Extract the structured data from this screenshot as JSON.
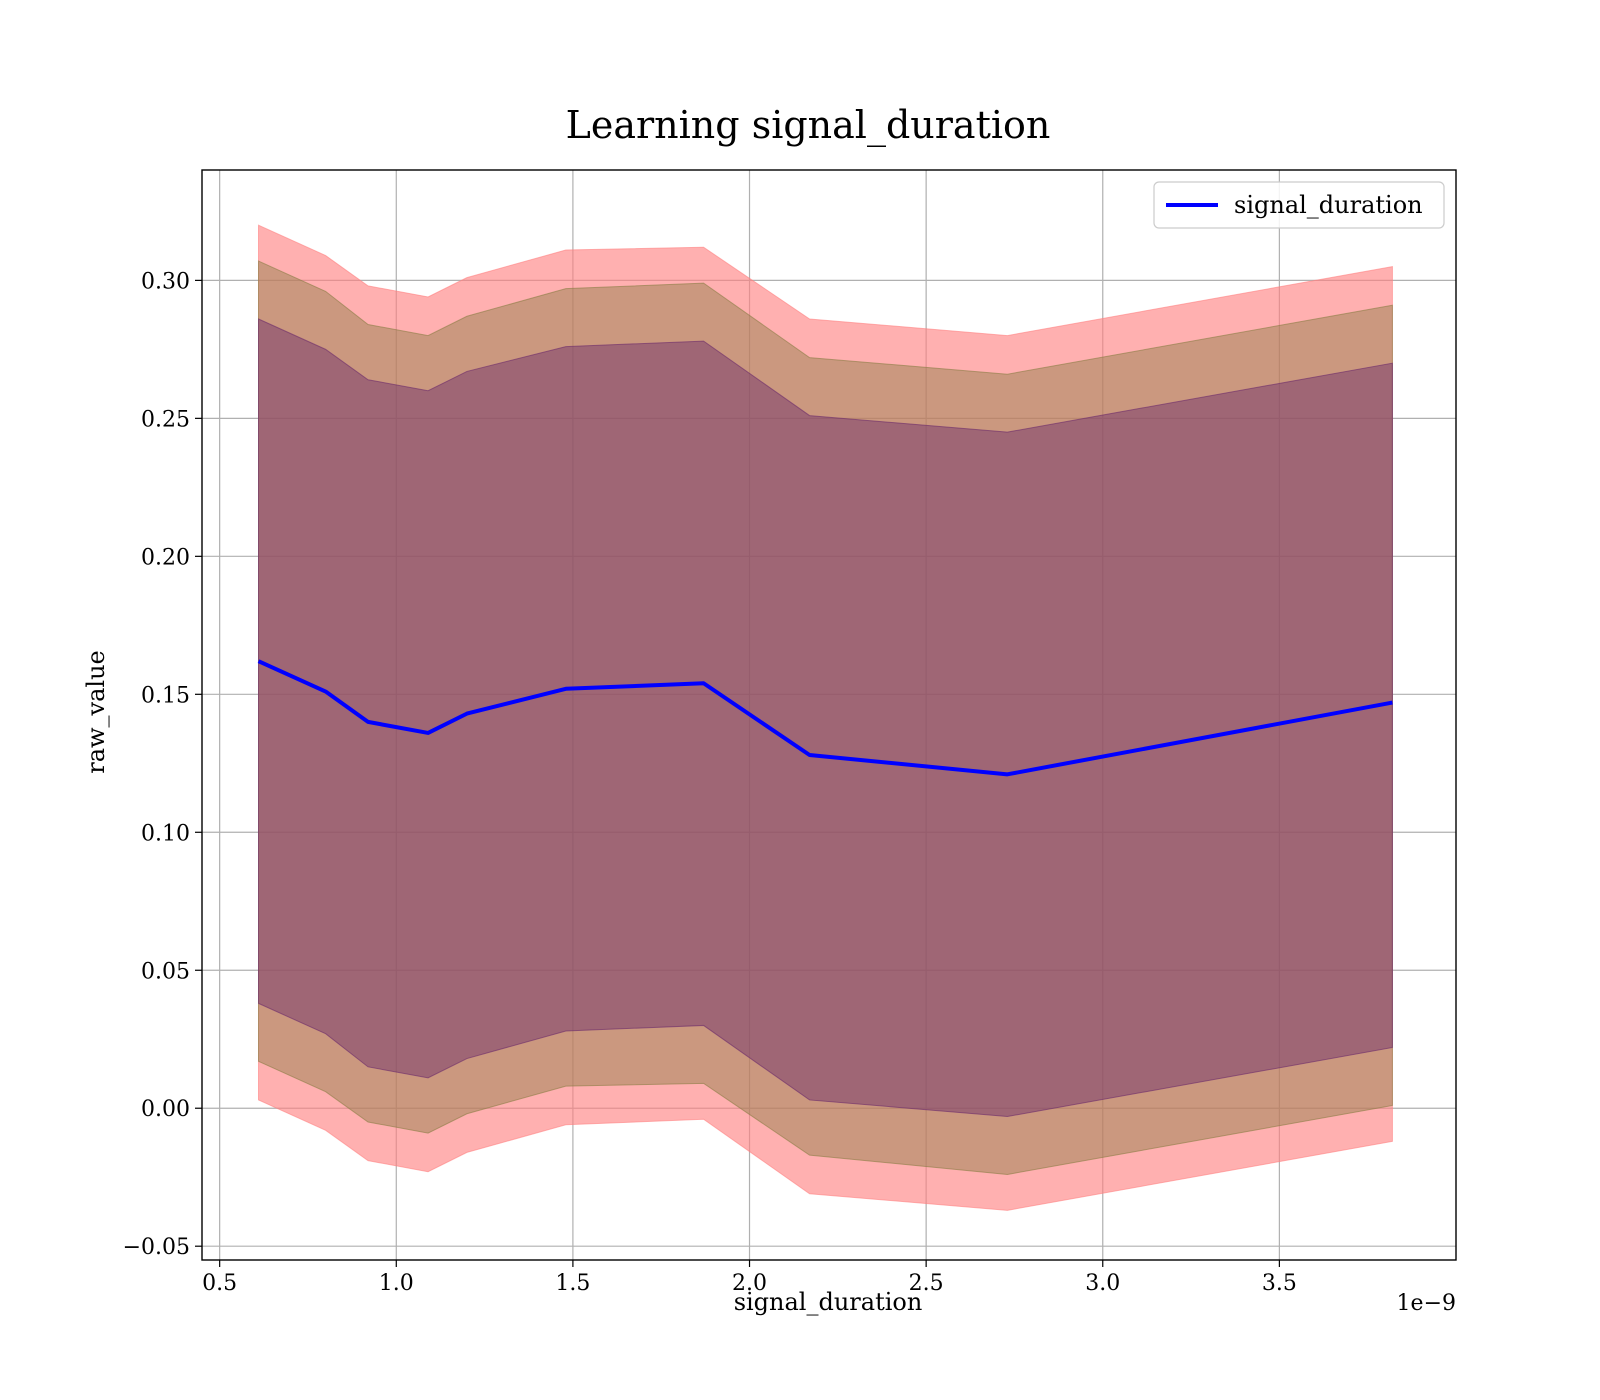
{
  "chart_data": {
    "type": "line",
    "title": "Learning signal_duration",
    "xlabel": "signal_duration",
    "ylabel": "raw_value",
    "x_offset_label": "1e−9",
    "xlim": [
      0.45,
      4.0
    ],
    "ylim": [
      -0.055,
      0.34
    ],
    "x_ticks": [
      0.5,
      1.0,
      1.5,
      2.0,
      2.5,
      3.0,
      3.5
    ],
    "x_tick_labels": [
      "0.5",
      "1.0",
      "1.5",
      "2.0",
      "2.5",
      "3.0",
      "3.5"
    ],
    "y_ticks": [
      -0.05,
      0.0,
      0.05,
      0.1,
      0.15,
      0.2,
      0.25,
      0.3
    ],
    "y_tick_labels": [
      "−0.05",
      "0.00",
      "0.05",
      "0.10",
      "0.15",
      "0.20",
      "0.25",
      "0.30"
    ],
    "grid": true,
    "legend_position": "top-right",
    "x": [
      0.61,
      0.8,
      0.92,
      1.09,
      1.2,
      1.48,
      1.87,
      2.17,
      2.73,
      3.82
    ],
    "series": [
      {
        "name": "signal_duration",
        "color": "#0000ff",
        "values": [
          0.162,
          0.151,
          0.14,
          0.136,
          0.143,
          0.152,
          0.154,
          0.128,
          0.121,
          0.147
        ]
      }
    ],
    "bands": [
      {
        "color": "#ff8080",
        "opacity": 0.62,
        "lower": [
          0.003,
          -0.008,
          -0.019,
          -0.023,
          -0.016,
          -0.006,
          -0.004,
          -0.031,
          -0.037,
          -0.012
        ],
        "upper": [
          0.32,
          0.309,
          0.298,
          0.294,
          0.301,
          0.311,
          0.312,
          0.286,
          0.28,
          0.305
        ]
      },
      {
        "color": "#8b7d44",
        "opacity": 0.45,
        "lower": [
          0.017,
          0.006,
          -0.005,
          -0.009,
          -0.002,
          0.008,
          0.009,
          -0.017,
          -0.024,
          0.001
        ],
        "upper": [
          0.307,
          0.296,
          0.284,
          0.28,
          0.287,
          0.297,
          0.299,
          0.272,
          0.266,
          0.291
        ]
      },
      {
        "color": "#6a2a6a",
        "opacity": 0.45,
        "lower": [
          0.038,
          0.027,
          0.015,
          0.011,
          0.018,
          0.028,
          0.03,
          0.003,
          -0.003,
          0.022
        ],
        "upper": [
          0.286,
          0.275,
          0.264,
          0.26,
          0.267,
          0.276,
          0.278,
          0.251,
          0.245,
          0.27
        ]
      }
    ]
  }
}
